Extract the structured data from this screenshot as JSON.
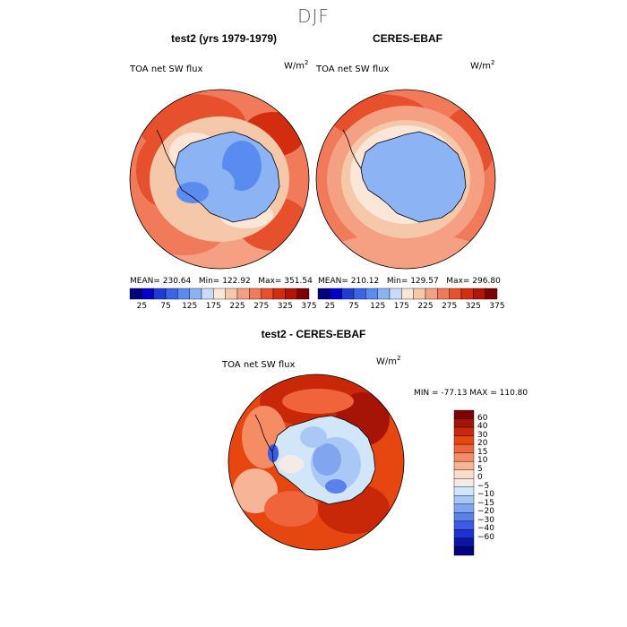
{
  "figure_title": "DJF",
  "panels": [
    {
      "title": "test2 (yrs 1979-1979)",
      "variable": "TOA net SW flux",
      "units_base": "W/m",
      "units_exp": "2",
      "stats": {
        "mean": "MEAN= 230.64",
        "min": "Min= 122.92",
        "max": "Max= 351.54"
      }
    },
    {
      "title": "CERES-EBAF",
      "variable": "TOA net SW flux",
      "units_base": "W/m",
      "units_exp": "2",
      "stats": {
        "mean": "MEAN= 210.12",
        "min": "Min= 129.57",
        "max": "Max= 296.80"
      }
    },
    {
      "title": "test2 - CERES-EBAF",
      "variable": "TOA net SW flux",
      "units_base": "W/m",
      "units_exp": "2",
      "stats": {
        "range": "MIN = -77.13 MAX = 110.80"
      }
    }
  ],
  "abs_colorbar": {
    "colors": [
      "#00007f",
      "#0000c8",
      "#1e3cd2",
      "#3c64e6",
      "#5a8cf0",
      "#8cb4f5",
      "#c8dcfa",
      "#fbe6d8",
      "#f5c8aa",
      "#f5a082",
      "#f07a5a",
      "#e6502d",
      "#d22d0f",
      "#b41405",
      "#7f0000"
    ],
    "tick_labels": [
      "25",
      "75",
      "125",
      "175",
      "225",
      "275",
      "325",
      "375"
    ]
  },
  "diff_colorbar": {
    "colors": [
      "#7f0000",
      "#a51405",
      "#c82808",
      "#e6460f",
      "#f0643c",
      "#f58c64",
      "#f8b496",
      "#fbdcc8",
      "#f5ebe6",
      "#d2e6fa",
      "#aac8f5",
      "#82a5f0",
      "#5a82eb",
      "#3c5ae6",
      "#1e32d2",
      "#0a14a5",
      "#00007f"
    ],
    "tick_labels": [
      "60",
      "40",
      "30",
      "20",
      "15",
      "10",
      "5",
      "0",
      "−5",
      "−10",
      "−15",
      "−20",
      "−30",
      "−40",
      "−60"
    ]
  },
  "chart_data": [
    {
      "type": "heatmap",
      "title": "test2 (yrs 1979-1979)",
      "subtitle": "TOA net SW flux",
      "units": "W/m2",
      "projection": "south polar stereographic",
      "mean": 230.64,
      "min": 122.92,
      "max": 351.54,
      "levels": [
        25,
        50,
        75,
        100,
        125,
        150,
        175,
        200,
        225,
        250,
        275,
        300,
        325,
        350,
        375
      ]
    },
    {
      "type": "heatmap",
      "title": "CERES-EBAF",
      "subtitle": "TOA net SW flux",
      "units": "W/m2",
      "projection": "south polar stereographic",
      "mean": 210.12,
      "min": 129.57,
      "max": 296.8,
      "levels": [
        25,
        50,
        75,
        100,
        125,
        150,
        175,
        200,
        225,
        250,
        275,
        300,
        325,
        350,
        375
      ]
    },
    {
      "type": "heatmap",
      "title": "test2 - CERES-EBAF",
      "subtitle": "TOA net SW flux",
      "units": "W/m2",
      "projection": "south polar stereographic",
      "min": -77.13,
      "max": 110.8,
      "levels": [
        -60,
        -40,
        -30,
        -20,
        -15,
        -10,
        -5,
        0,
        5,
        10,
        15,
        20,
        30,
        40,
        60
      ]
    }
  ]
}
